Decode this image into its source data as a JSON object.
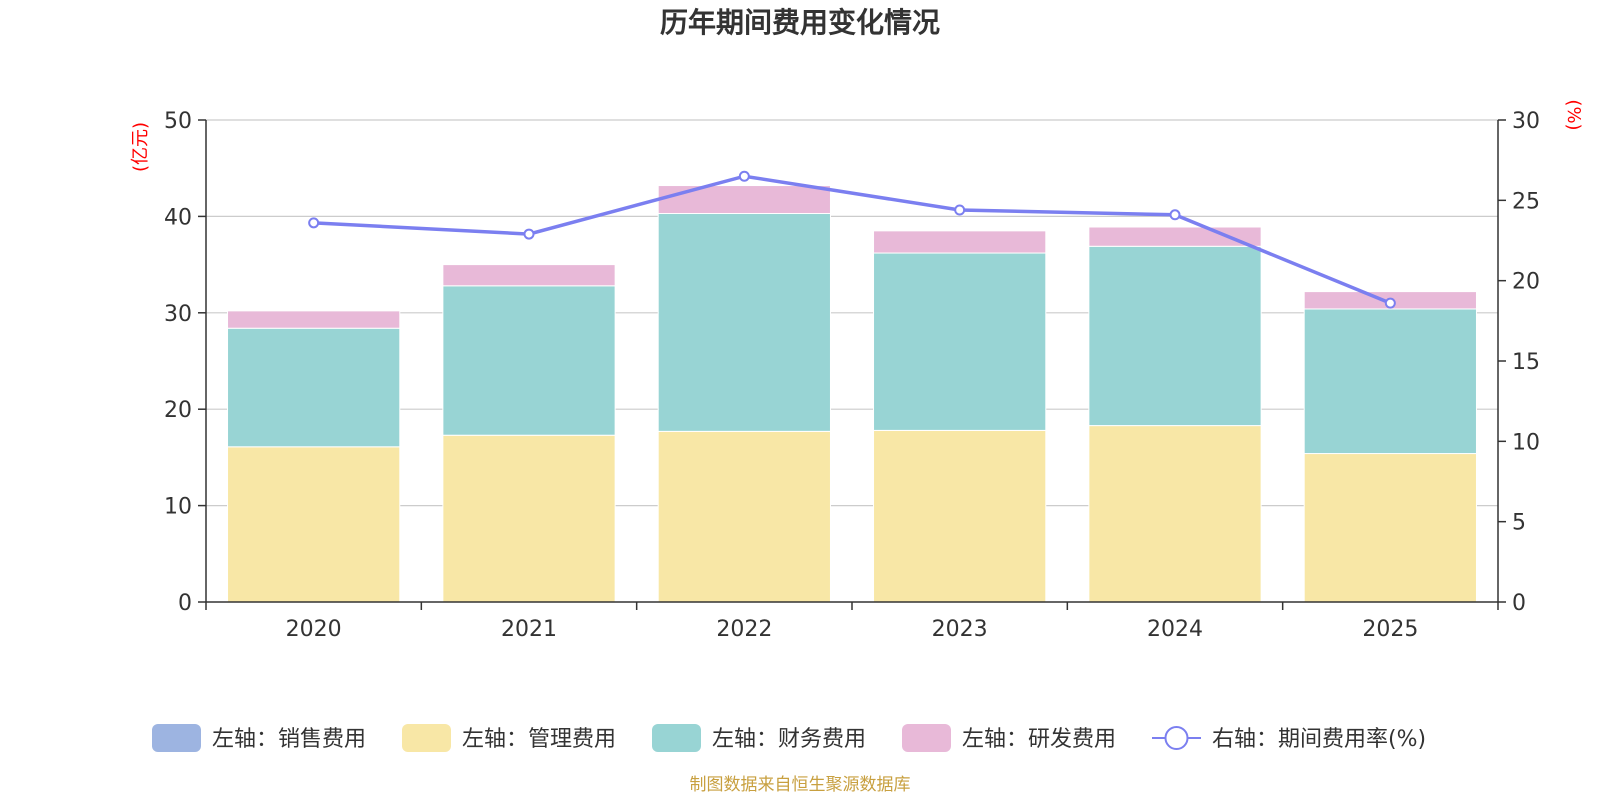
{
  "chart_data": {
    "type": "bar",
    "stacked": true,
    "title": "历年期间费用变化情况",
    "categories": [
      "2020",
      "2021",
      "2022",
      "2023",
      "2024",
      "2025"
    ],
    "left_axis": {
      "unit_label": "(亿元)",
      "ylim": [
        0,
        50
      ],
      "ticks": [
        0,
        10,
        20,
        30,
        40,
        50
      ]
    },
    "right_axis": {
      "unit_label": "(%)",
      "ylim": [
        0,
        30
      ],
      "ticks": [
        0,
        5,
        10,
        15,
        20,
        25,
        30
      ]
    },
    "series": [
      {
        "name": "左轴：销售费用",
        "axis": "left",
        "kind": "bar",
        "color": "#9db4e1",
        "values": [
          0,
          0,
          0,
          0,
          0,
          0
        ]
      },
      {
        "name": "左轴：管理费用",
        "axis": "left",
        "kind": "bar",
        "color": "#f8e7a6",
        "values": [
          16.1,
          17.3,
          17.7,
          17.8,
          18.3,
          15.4
        ]
      },
      {
        "name": "左轴：财务费用",
        "axis": "left",
        "kind": "bar",
        "color": "#98d4d4",
        "values": [
          12.3,
          15.5,
          22.6,
          18.4,
          18.6,
          15.0
        ]
      },
      {
        "name": "左轴：研发费用",
        "axis": "left",
        "kind": "bar",
        "color": "#e8b9d8",
        "values": [
          1.8,
          2.2,
          2.9,
          2.3,
          2.0,
          1.8
        ]
      },
      {
        "name": "右轴：期间费用率(%)",
        "axis": "right",
        "kind": "line",
        "color": "#7b7ff0",
        "values": [
          23.6,
          22.9,
          26.5,
          24.4,
          24.1,
          18.6
        ]
      }
    ],
    "grid": true,
    "legend_position": "bottom",
    "source_note": "制图数据来自恒生聚源数据库"
  }
}
